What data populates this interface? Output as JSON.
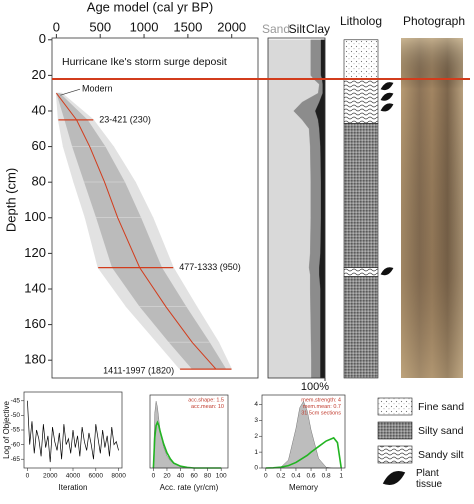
{
  "chart_data": [
    {
      "type": "agemodel",
      "title": "Age model (cal yr BP)",
      "y_label": "Depth (cm)",
      "xlim": [
        -50,
        2300
      ],
      "xticks": [
        0,
        500,
        1000,
        1500,
        2000
      ],
      "ylim": [
        -1,
        190
      ],
      "yticks": [
        0,
        20,
        40,
        60,
        80,
        100,
        120,
        140,
        160,
        180
      ],
      "depth": [
        30,
        45,
        60,
        80,
        100,
        128,
        150,
        170,
        185
      ],
      "age_mean": [
        0,
        230,
        380,
        550,
        700,
        950,
        1250,
        1550,
        1820
      ],
      "age_min": [
        0,
        23,
        80,
        200,
        330,
        477,
        800,
        1150,
        1411
      ],
      "age_max": [
        60,
        421,
        650,
        900,
        1100,
        1333,
        1600,
        1850,
        1997
      ],
      "color": "#d23c1c",
      "annotation": "Hurricane Ike's storm surge deposit",
      "hurricane_depth": 22,
      "modern_label": "Modern",
      "dated_levels": [
        {
          "depth": 45,
          "age_min": 23,
          "age_max": 421,
          "label": "23-421 (230)"
        },
        {
          "depth": 128,
          "age_min": 477,
          "age_max": 1333,
          "label": "477-1333 (950)"
        },
        {
          "depth": 185,
          "age_min": 1411,
          "age_max": 1997,
          "label": "1411-1997 (1820)"
        }
      ]
    },
    {
      "type": "grain",
      "xlim": [
        0,
        100
      ],
      "xticks": [
        {
          "value": 100,
          "label": "100%"
        }
      ],
      "ylim": [
        -1,
        190
      ],
      "depth": [
        0,
        20,
        22,
        25,
        30,
        35,
        40,
        45,
        50,
        60,
        80,
        100,
        120,
        128,
        132,
        140,
        160,
        180,
        190
      ],
      "series": [
        {
          "name": "Sand",
          "color": "#d9d9d9",
          "values": [
            75,
            75,
            80,
            90,
            88,
            60,
            45,
            60,
            72,
            74,
            75,
            75,
            74,
            72,
            74,
            74,
            75,
            76,
            76
          ]
        },
        {
          "name": "Silt",
          "color": "#8c8c8c",
          "values": [
            18,
            18,
            15,
            6,
            8,
            30,
            38,
            28,
            18,
            18,
            18,
            18,
            18,
            18,
            16,
            18,
            17,
            16,
            16
          ]
        },
        {
          "name": "Clay",
          "color": "#1e1e1e",
          "values": [
            7,
            7,
            5,
            4,
            4,
            10,
            17,
            12,
            10,
            8,
            7,
            7,
            8,
            10,
            10,
            8,
            8,
            8,
            8
          ]
        }
      ]
    },
    {
      "type": "litholog",
      "title": "Litholog",
      "ylim": [
        -1,
        190
      ],
      "layers": [
        {
          "top": 0,
          "bottom": 22,
          "legend": 0
        },
        {
          "top": 22,
          "bottom": 47,
          "legend": 2
        },
        {
          "top": 47,
          "bottom": 128,
          "legend": 1
        },
        {
          "top": 128,
          "bottom": 133,
          "legend": 2
        },
        {
          "top": 133,
          "bottom": 190,
          "legend": 1
        }
      ],
      "legend": [
        "Fine sand",
        "Silty sand",
        "Sandy silt"
      ],
      "plant_label": "Plant tissue",
      "plant_depths": [
        26,
        32,
        38,
        130
      ],
      "photo_title": "Photograph"
    },
    {
      "type": "trace",
      "x_label": "Iteration",
      "y_label": "Log of Objective",
      "xlim": [
        -300,
        8300
      ],
      "xticks": [
        0,
        2000,
        4000,
        6000,
        8000
      ],
      "ylim": [
        -68,
        -42
      ],
      "yticks": [
        -45,
        -50,
        -55,
        -60,
        -65
      ],
      "color": "#000000",
      "x": [
        0,
        200,
        400,
        600,
        800,
        1000,
        1200,
        1400,
        1600,
        1800,
        2000,
        2200,
        2400,
        2600,
        2800,
        3000,
        3200,
        3400,
        3600,
        3800,
        4000,
        4200,
        4400,
        4600,
        4800,
        5000,
        5200,
        5400,
        5600,
        5800,
        6000,
        6200,
        6400,
        6600,
        6800,
        7000,
        7200,
        7400,
        7600,
        7800,
        8000
      ],
      "values": [
        -45,
        -60,
        -52,
        -63,
        -55,
        -58,
        -64,
        -53,
        -61,
        -57,
        -66,
        -54,
        -59,
        -62,
        -56,
        -65,
        -53,
        -60,
        -58,
        -63,
        -55,
        -61,
        -57,
        -64,
        -54,
        -59,
        -62,
        -56,
        -60,
        -65,
        -53,
        -58,
        -63,
        -55,
        -61,
        -57,
        -64,
        -54,
        -60,
        -59,
        -62
      ]
    },
    {
      "type": "density",
      "x_label": "Acc. rate (yr/cm)",
      "xlim": [
        -5,
        110
      ],
      "xticks": [
        0,
        20,
        40,
        60,
        80,
        100
      ],
      "ylim": [
        0,
        0.12
      ],
      "x": [
        0,
        2,
        4,
        6,
        8,
        10,
        15,
        20,
        25,
        30,
        40,
        50,
        60,
        80,
        100
      ],
      "series": [
        {
          "color": "#bdbdbd",
          "values": [
            0,
            0.09,
            0.11,
            0.1,
            0.08,
            0.06,
            0.035,
            0.02,
            0.012,
            0.007,
            0.003,
            0.001,
            0,
            0,
            0
          ]
        },
        {
          "color": "#22b422",
          "values": [
            0,
            0.05,
            0.07,
            0.075,
            0.07,
            0.06,
            0.04,
            0.025,
            0.015,
            0.008,
            0.003,
            0.001,
            0,
            0,
            0
          ]
        }
      ],
      "notes": [
        "acc.shape: 1.5",
        "acc.mean: 10"
      ]
    },
    {
      "type": "density",
      "x_label": "Memory",
      "xlim": [
        -0.05,
        1.05
      ],
      "xticks": [
        0,
        0.2,
        0.4,
        0.6,
        0.8,
        1
      ],
      "ylim": [
        0,
        4.6
      ],
      "yticks": [
        0,
        1,
        2,
        3,
        4
      ],
      "x": [
        0,
        0.1,
        0.2,
        0.3,
        0.4,
        0.45,
        0.5,
        0.55,
        0.6,
        0.7,
        0.8,
        0.9,
        0.95,
        1
      ],
      "series": [
        {
          "color": "#bdbdbd",
          "values": [
            0,
            0,
            0.05,
            0.5,
            2.5,
            3.8,
            4.2,
            3.6,
            2.4,
            0.6,
            0.05,
            0,
            0,
            0
          ]
        },
        {
          "color": "#22b422",
          "values": [
            0,
            0.01,
            0.05,
            0.15,
            0.35,
            0.5,
            0.65,
            0.8,
            1.0,
            1.35,
            1.7,
            1.9,
            1.6,
            0
          ]
        }
      ],
      "notes": [
        "mem.strength: 4",
        "mem.mean: 0.7",
        "31 5cm sections"
      ]
    }
  ]
}
